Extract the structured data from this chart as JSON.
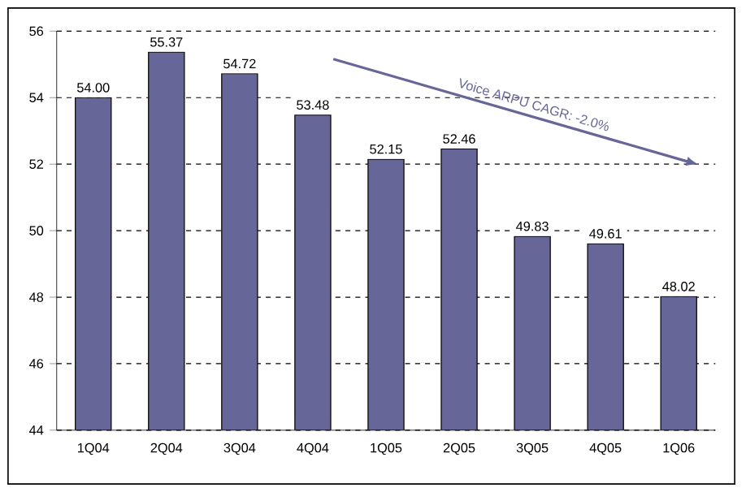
{
  "chart_data": {
    "type": "bar",
    "categories": [
      "1Q04",
      "2Q04",
      "3Q04",
      "4Q04",
      "1Q05",
      "2Q05",
      "3Q05",
      "4Q05",
      "1Q06"
    ],
    "values": [
      54.0,
      55.37,
      54.72,
      53.48,
      52.15,
      52.46,
      49.83,
      49.61,
      48.02
    ],
    "color": "#666699",
    "ylim": [
      44,
      56
    ],
    "yticks": [
      44,
      46,
      48,
      50,
      52,
      54,
      56
    ],
    "value_labels": [
      "54.00",
      "55.37",
      "54.72",
      "53.48",
      "52.15",
      "52.46",
      "49.83",
      "49.61",
      "48.02"
    ],
    "grid": "y",
    "annotations": [
      "Voice ARPU CAGR: -2.0%"
    ]
  }
}
